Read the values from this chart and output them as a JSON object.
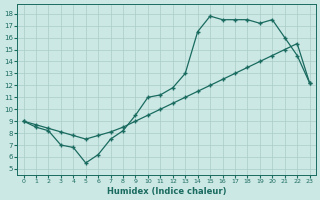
{
  "xlabel": "Humidex (Indice chaleur)",
  "bg_color": "#cce8e4",
  "grid_color": "#aaccc8",
  "line_color": "#1a6b60",
  "xlim": [
    -0.5,
    23.5
  ],
  "ylim": [
    4.5,
    18.8
  ],
  "xticks": [
    0,
    1,
    2,
    3,
    4,
    5,
    6,
    7,
    8,
    9,
    10,
    11,
    12,
    13,
    14,
    15,
    16,
    17,
    18,
    19,
    20,
    21,
    22,
    23
  ],
  "yticks": [
    5,
    6,
    7,
    8,
    9,
    10,
    11,
    12,
    13,
    14,
    15,
    16,
    17,
    18
  ],
  "curve_x": [
    0,
    1,
    2,
    3,
    4,
    5,
    6,
    7,
    8,
    9,
    10,
    11,
    12,
    13,
    14,
    15,
    16,
    17,
    18,
    19,
    20,
    21,
    22,
    23
  ],
  "curve_y": [
    9.0,
    8.5,
    8.2,
    7.0,
    6.8,
    5.5,
    6.2,
    7.5,
    8.2,
    9.5,
    11.0,
    11.2,
    11.8,
    13.0,
    16.5,
    17.8,
    17.5,
    17.5,
    17.5,
    17.2,
    17.5,
    16.0,
    14.5,
    12.2
  ],
  "diag_x": [
    0,
    1,
    2,
    3,
    4,
    5,
    6,
    7,
    8,
    9,
    10,
    11,
    12,
    13,
    14,
    15,
    16,
    17,
    18,
    19,
    20,
    21,
    22,
    23
  ],
  "diag_y": [
    9.0,
    8.7,
    8.4,
    8.1,
    7.8,
    7.5,
    7.8,
    8.1,
    8.5,
    9.0,
    9.5,
    10.0,
    10.5,
    11.0,
    11.5,
    12.0,
    12.5,
    13.0,
    13.5,
    14.0,
    14.5,
    15.0,
    15.5,
    12.2
  ]
}
